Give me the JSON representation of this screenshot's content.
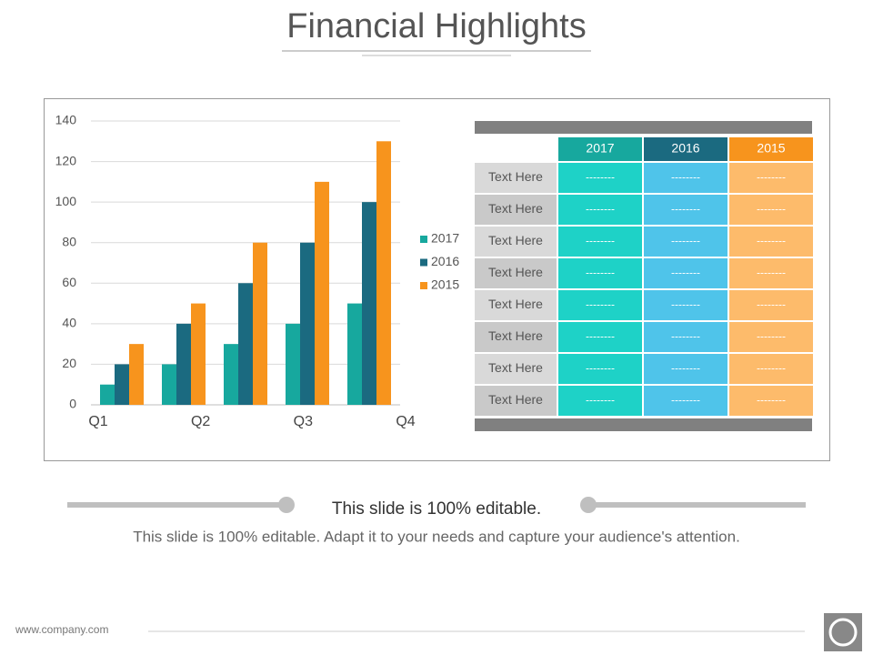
{
  "title": "Financial Highlights",
  "chart_data": {
    "type": "bar",
    "categories": [
      "Q1",
      "Q2",
      "Q3",
      "Q4",
      null
    ],
    "series": [
      {
        "name": "2017",
        "color": "#17a89e",
        "values": [
          10,
          20,
          30,
          40,
          50
        ]
      },
      {
        "name": "2016",
        "color": "#1b6a80",
        "values": [
          20,
          40,
          60,
          80,
          100
        ]
      },
      {
        "name": "2015",
        "color": "#f7941d",
        "values": [
          30,
          50,
          80,
          110,
          130
        ]
      }
    ],
    "ylim": [
      0,
      140
    ],
    "yticks": [
      0,
      20,
      40,
      60,
      80,
      100,
      120,
      140
    ],
    "grid": true,
    "legend": "right"
  },
  "table": {
    "columns": [
      {
        "name": "2017",
        "color": "#17a89e",
        "fill": "#1ed2c7"
      },
      {
        "name": "2016",
        "color": "#1b6a80",
        "fill": "#4fc4ea"
      },
      {
        "name": "2015",
        "color": "#f7941d",
        "fill": "#fdbb6b"
      }
    ],
    "rows": [
      {
        "label": "Text Here",
        "cells": [
          "--------",
          "--------",
          "--------"
        ]
      },
      {
        "label": "Text Here",
        "cells": [
          "--------",
          "--------",
          "--------"
        ]
      },
      {
        "label": "Text Here",
        "cells": [
          "--------",
          "--------",
          "--------"
        ]
      },
      {
        "label": "Text Here",
        "cells": [
          "--------",
          "--------",
          "--------"
        ]
      },
      {
        "label": "Text Here",
        "cells": [
          "--------",
          "--------",
          "--------"
        ]
      },
      {
        "label": "Text Here",
        "cells": [
          "--------",
          "--------",
          "--------"
        ]
      },
      {
        "label": "Text Here",
        "cells": [
          "--------",
          "--------",
          "--------"
        ]
      },
      {
        "label": "Text Here",
        "cells": [
          "--------",
          "--------",
          "--------"
        ]
      }
    ]
  },
  "subtitle": "This slide is 100% editable.",
  "description": "This slide is 100% editable. Adapt it to your needs and capture your audience's attention.",
  "footer": "www.company.com"
}
